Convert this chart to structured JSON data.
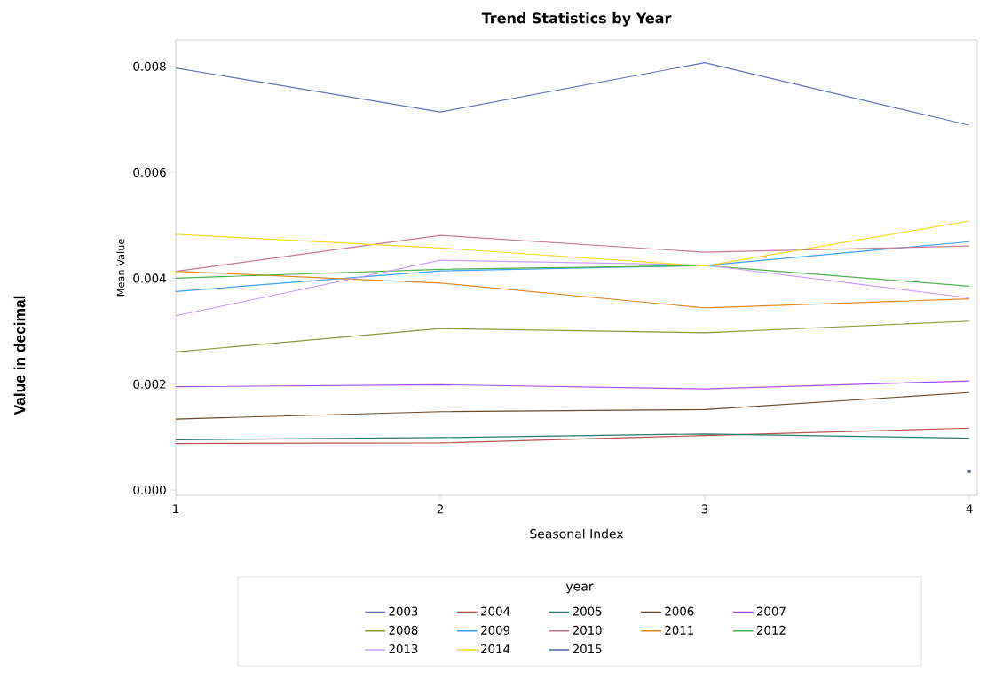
{
  "chart_data": {
    "type": "line",
    "title": "Trend Statistics by Year",
    "xlabel": "Seasonal Index",
    "ylabel": "Mean Value",
    "legend_title": "year",
    "annotations": [
      "Value in decimal"
    ],
    "x": [
      1,
      2,
      3,
      4
    ],
    "xlim": [
      1,
      4.03
    ],
    "ylim": [
      -0.0001,
      0.0085
    ],
    "xticks": [
      1,
      2,
      3,
      4
    ],
    "yticks": [
      {
        "value": 0,
        "label": "0.000"
      },
      {
        "value": 0.002,
        "label": "0.002"
      },
      {
        "value": 0.004,
        "label": "0.004"
      },
      {
        "value": 0.006,
        "label": "0.006"
      },
      {
        "value": 0.008,
        "label": "0.008"
      }
    ],
    "grid": false,
    "legend": "bottom",
    "marker": "none",
    "line_style": "solid",
    "series": [
      {
        "name": "2003",
        "color": "#6573b7",
        "values": [
          0.00797,
          0.00714,
          0.00807,
          0.00689
        ]
      },
      {
        "name": "2004",
        "color": "#b8524f",
        "values": [
          0.00088,
          0.00089,
          0.00103,
          0.00117
        ]
      },
      {
        "name": "2005",
        "color": "#2a7a6e",
        "values": [
          0.00095,
          0.00099,
          0.00106,
          0.00098
        ]
      },
      {
        "name": "2006",
        "color": "#6b4a2a",
        "values": [
          0.00134,
          0.00148,
          0.00152,
          0.00184
        ]
      },
      {
        "name": "2007",
        "color": "#a64ff0",
        "values": [
          0.00195,
          0.00199,
          0.00191,
          0.00206
        ]
      },
      {
        "name": "2008",
        "color": "#8a9a3a",
        "values": [
          0.00261,
          0.00305,
          0.00297,
          0.00319
        ]
      },
      {
        "name": "2009",
        "color": "#3fa0f5",
        "values": [
          0.00375,
          0.00414,
          0.00424,
          0.00469
        ]
      },
      {
        "name": "2010",
        "color": "#c47b98",
        "values": [
          0.00413,
          0.00481,
          0.00449,
          0.00461
        ]
      },
      {
        "name": "2011",
        "color": "#e08a2a",
        "values": [
          0.00413,
          0.00391,
          0.00344,
          0.00361
        ]
      },
      {
        "name": "2012",
        "color": "#4fb24f",
        "values": [
          0.004,
          0.00417,
          0.00424,
          0.00385
        ]
      },
      {
        "name": "2013",
        "color": "#c8a0ff",
        "values": [
          0.00329,
          0.00434,
          0.00425,
          0.00363
        ]
      },
      {
        "name": "2014",
        "color": "#f5d82a",
        "values": [
          0.00483,
          0.00457,
          0.00423,
          0.00508
        ]
      },
      {
        "name": "2015",
        "color": "#5a6aaa",
        "marker": "square",
        "values": [
          null,
          null,
          null,
          0.00035
        ]
      }
    ]
  }
}
